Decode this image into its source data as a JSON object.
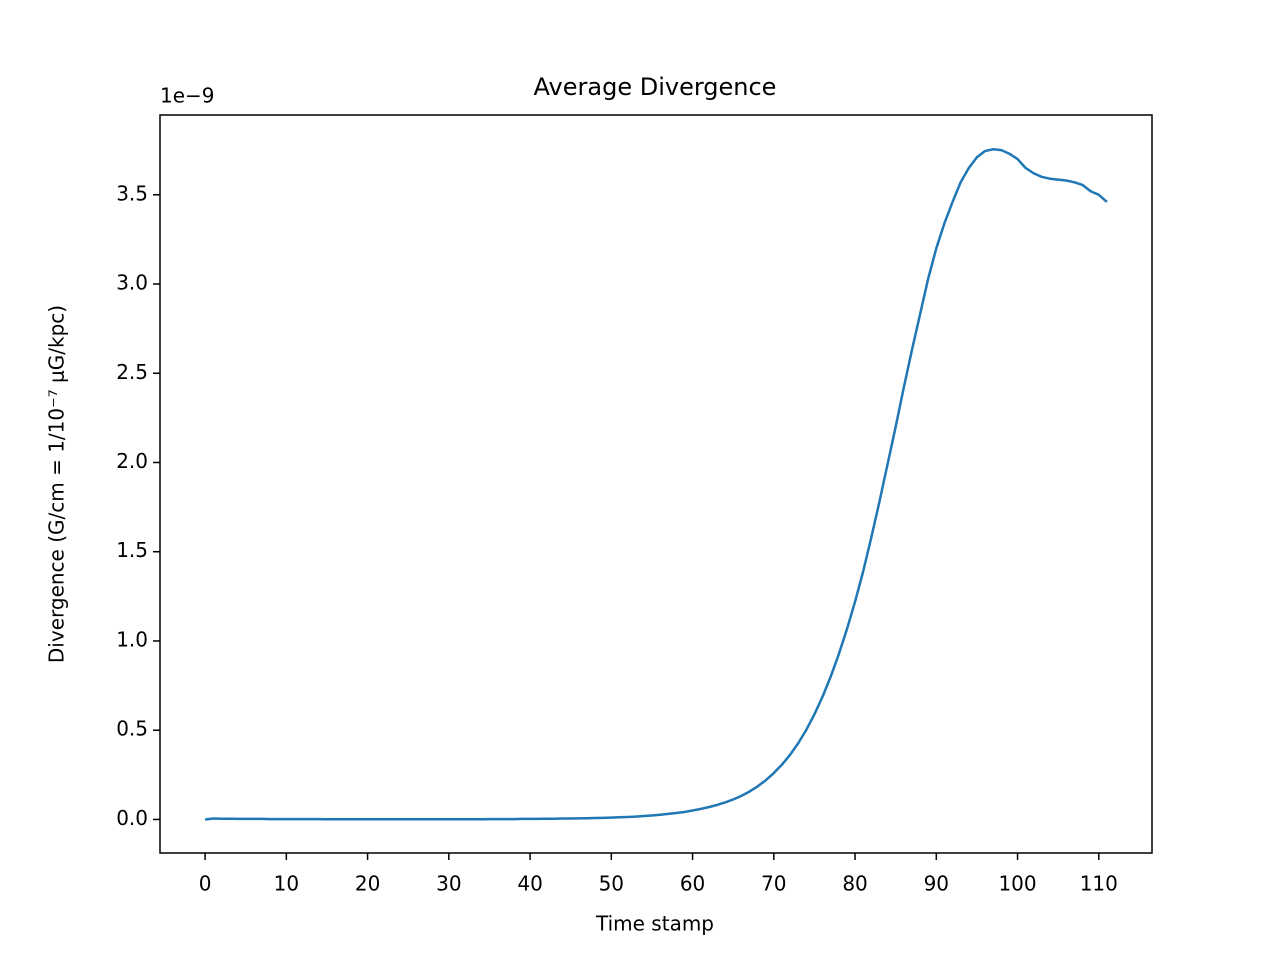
{
  "chart_data": {
    "type": "line",
    "title": "Average Divergence",
    "xlabel": "Time stamp",
    "ylabel": "Divergence (G/cm = 1/10⁻⁷ μG/kpc)",
    "y_offset_label": "1e−9",
    "x": [
      0,
      1,
      2,
      3,
      4,
      5,
      6,
      7,
      8,
      9,
      10,
      11,
      12,
      13,
      14,
      15,
      16,
      17,
      18,
      19,
      20,
      21,
      22,
      23,
      24,
      25,
      26,
      27,
      28,
      29,
      30,
      31,
      32,
      33,
      34,
      35,
      36,
      37,
      38,
      39,
      40,
      41,
      42,
      43,
      44,
      45,
      46,
      47,
      48,
      49,
      50,
      51,
      52,
      53,
      54,
      55,
      56,
      57,
      58,
      59,
      60,
      61,
      62,
      63,
      64,
      65,
      66,
      67,
      68,
      69,
      70,
      71,
      72,
      73,
      74,
      75,
      76,
      77,
      78,
      79,
      80,
      81,
      82,
      83,
      84,
      85,
      86,
      87,
      88,
      89,
      90,
      91,
      92,
      93,
      94,
      95,
      96,
      97,
      98,
      99,
      100,
      101,
      102,
      103,
      104,
      105,
      106,
      107,
      108,
      109,
      110,
      111
    ],
    "series": [
      {
        "color": "#1f77b4",
        "values": [
          0,
          0.005,
          0.004,
          0.004,
          0.003,
          0.003,
          0.003,
          0.003,
          0.002,
          0.002,
          0.002,
          0.002,
          0.002,
          0.002,
          0.002,
          0.001,
          0.001,
          0.001,
          0.001,
          0.001,
          0.001,
          0.001,
          0.001,
          0.001,
          0.001,
          0.001,
          0.001,
          0.001,
          0.001,
          0.001,
          0.001,
          0.001,
          0.001,
          0.001,
          0.001,
          0.002,
          0.002,
          0.002,
          0.002,
          0.003,
          0.003,
          0.003,
          0.004,
          0.004,
          0.005,
          0.005,
          0.006,
          0.007,
          0.008,
          0.009,
          0.01,
          0.012,
          0.014,
          0.016,
          0.019,
          0.022,
          0.026,
          0.031,
          0.036,
          0.042,
          0.05,
          0.059,
          0.069,
          0.081,
          0.095,
          0.112,
          0.132,
          0.156,
          0.185,
          0.219,
          0.26,
          0.307,
          0.362,
          0.427,
          0.502,
          0.589,
          0.688,
          0.8,
          0.926,
          1.066,
          1.22,
          1.39,
          1.58,
          1.78,
          1.99,
          2.2,
          2.42,
          2.63,
          2.83,
          3.03,
          3.2,
          3.34,
          3.46,
          3.57,
          3.65,
          3.71,
          3.745,
          3.755,
          3.75,
          3.73,
          3.7,
          3.65,
          3.62,
          3.6,
          3.59,
          3.585,
          3.58,
          3.57,
          3.555,
          3.52,
          3.5,
          3.46
        ]
      }
    ],
    "xlim": [
      -5.55,
      116.55
    ],
    "xticks": [
      0,
      10,
      20,
      30,
      40,
      50,
      60,
      70,
      80,
      90,
      100,
      110
    ],
    "ylim": [
      -0.188,
      3.947
    ],
    "yticks": [
      {
        "value": 0,
        "label": "0.0"
      },
      0.5,
      {
        "value": 1,
        "label": "1.0"
      },
      1.5,
      {
        "value": 2,
        "label": "2.0"
      },
      2.5,
      {
        "value": 3,
        "label": "3.0"
      },
      3.5
    ]
  }
}
